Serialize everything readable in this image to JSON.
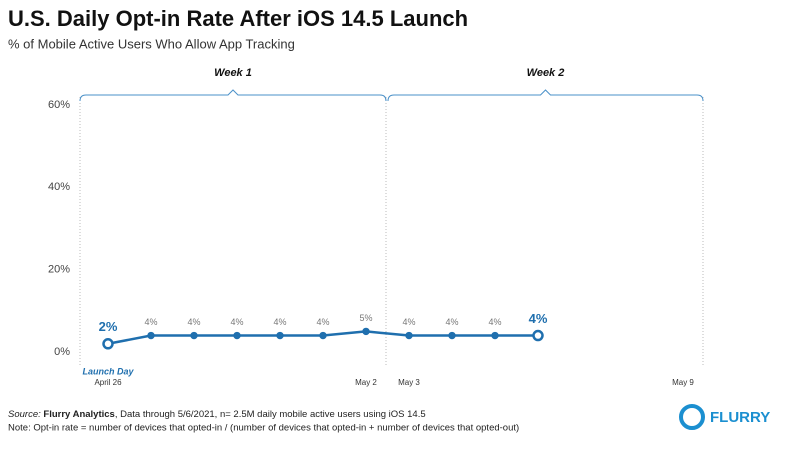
{
  "chart_data": {
    "type": "line",
    "title": "U.S. Daily Opt-in Rate After iOS 14.5 Launch",
    "subtitle": "% of Mobile Active Users Who Allow App Tracking",
    "categories": [
      "April 26",
      null,
      null,
      null,
      null,
      null,
      "May 2",
      "May 3",
      null,
      null,
      null,
      null,
      null,
      "May 9"
    ],
    "series": [
      {
        "name": "Opt-in rate",
        "color": "#1f6fae",
        "values": [
          2,
          4,
          4,
          4,
          4,
          4,
          5,
          4,
          4,
          4,
          4,
          null,
          null,
          null
        ],
        "value_labels": [
          "2%",
          "4%",
          "4%",
          "4%",
          "4%",
          "4%",
          "5%",
          "4%",
          "4%",
          "4%",
          "4%",
          null,
          null,
          null
        ]
      }
    ],
    "ylim": [
      0,
      60
    ],
    "yticks": [
      {
        "value": 0,
        "label": "0%"
      },
      {
        "value": 20,
        "label": "20%"
      },
      {
        "value": 40,
        "label": "40%"
      },
      {
        "value": 60,
        "label": "60%"
      }
    ],
    "weeks": [
      "Week 1",
      "Week 2"
    ],
    "annotation": "Launch Day",
    "source": {
      "label": "Source:",
      "org": "Flurry Analytics",
      "text": ", Data through 5/6/2021, n= 2.5M daily mobile active users using iOS 14.5"
    },
    "note": "Note: Opt-in rate = number of devices that opted-in / (number of devices that opted-in + number of devices that opted-out)",
    "logo": "FLURRY"
  }
}
